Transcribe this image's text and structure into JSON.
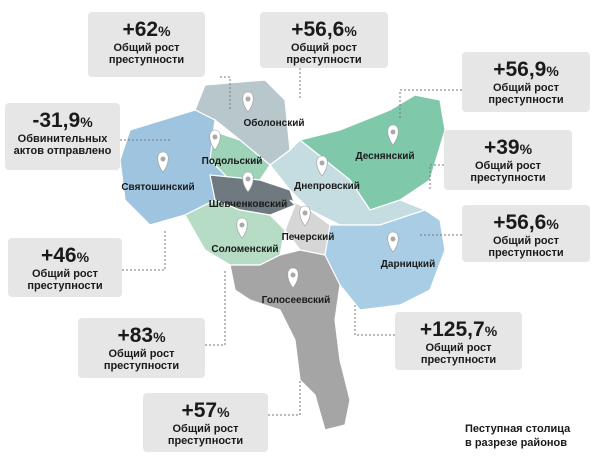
{
  "districts": [
    {
      "name": "Оболонский"
    },
    {
      "name": "Подольский"
    },
    {
      "name": "Святошинский"
    },
    {
      "name": "Деснянский"
    },
    {
      "name": "Днепровский"
    },
    {
      "name": "Шевченковский"
    },
    {
      "name": "Печерский"
    },
    {
      "name": "Соломенский"
    },
    {
      "name": "Дарницкий"
    },
    {
      "name": "Голосеевский"
    }
  ],
  "callouts": [
    {
      "value": "+62",
      "unit": "%",
      "lines": [
        "Общий рост",
        "преступности"
      ]
    },
    {
      "value": "+56,6",
      "unit": "%",
      "lines": [
        "Общий рост",
        "преступности"
      ]
    },
    {
      "value": "+56,9",
      "unit": "%",
      "lines": [
        "Общий рост",
        "преступности"
      ]
    },
    {
      "value": "-31,9",
      "unit": "%",
      "lines": [
        "Обвинительных",
        "актов отправлено"
      ]
    },
    {
      "value": "+39",
      "unit": "%",
      "lines": [
        "Общий рост",
        "преступности"
      ]
    },
    {
      "value": "+56,6",
      "unit": "%",
      "lines": [
        "Общий рост",
        "преступности"
      ]
    },
    {
      "value": "+46",
      "unit": "%",
      "lines": [
        "Общий рост",
        "преступности"
      ]
    },
    {
      "value": "+83",
      "unit": "%",
      "lines": [
        "Общий рост",
        "преступности"
      ]
    },
    {
      "value": "+125,7",
      "unit": "%",
      "lines": [
        "Общий рост",
        "преступности"
      ]
    },
    {
      "value": "+57",
      "unit": "%",
      "lines": [
        "Общий рост",
        "преступности"
      ]
    }
  ],
  "caption": [
    "Пеступная столица",
    "в разрезе районов"
  ]
}
